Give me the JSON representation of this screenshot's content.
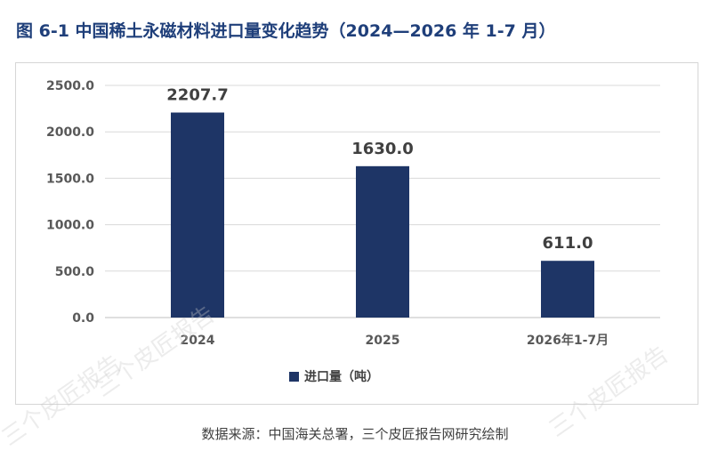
{
  "header": {
    "title": "图 6-1 中国稀土永磁材料进口量变化趋势（2024—2026 年 1-7 月）"
  },
  "chart_data": {
    "type": "bar",
    "categories": [
      "2024",
      "2025",
      "2026年1-7月"
    ],
    "series": [
      {
        "name": "进口量（吨）",
        "values": [
          2207.7,
          1630.0,
          611.0
        ],
        "color": "#1e3566"
      }
    ],
    "data_labels": [
      "2207.7",
      "1630.0",
      "611.0"
    ],
    "ylim": [
      0,
      2500
    ],
    "yticks": [
      0,
      500,
      1000,
      1500,
      2000,
      2500
    ],
    "ytick_labels": [
      "0.0",
      "500.0",
      "1000.0",
      "1500.0",
      "2000.0",
      "2500.0"
    ],
    "grid": true,
    "legend_position": "bottom"
  },
  "footer": {
    "source": "数据来源：中国海关总署，三个皮匠报告网研究绘制"
  },
  "watermark": {
    "text": "三个皮匠报告"
  }
}
